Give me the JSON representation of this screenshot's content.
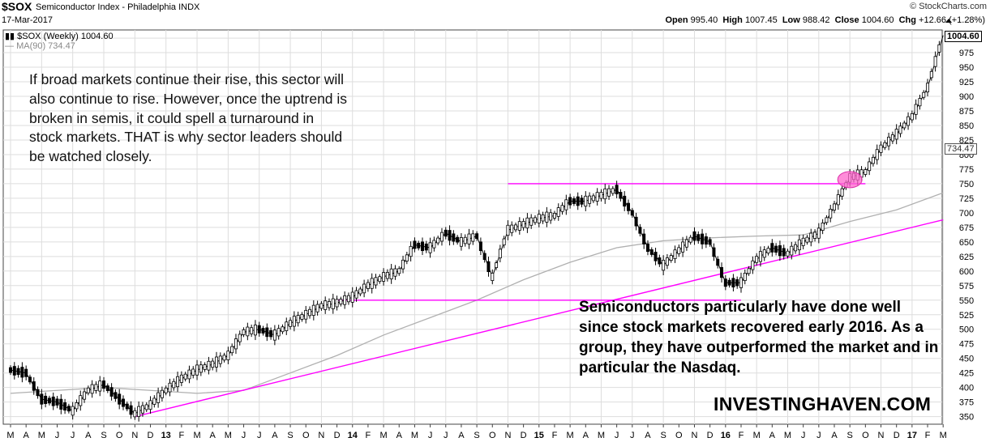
{
  "header": {
    "symbol": "$SOX",
    "name": "Semiconductor Index - Philadelphia INDX",
    "date": "17-Mar-2017",
    "source": "© StockCharts.com",
    "open_label": "Open",
    "open": "995.40",
    "high_label": "High",
    "high": "1007.45",
    "low_label": "Low",
    "low": "988.42",
    "close_label": "Close",
    "close": "1004.60",
    "chg_label": "Chg",
    "chg": "+12.66 (+1.28%)"
  },
  "legend": {
    "main": "$SOX (Weekly) 1004.60",
    "ma": "MA(90) 734.47"
  },
  "price_tags": {
    "last": "1004.60",
    "ma": "734.47"
  },
  "annotations": {
    "note1": "If broad markets continue their rise, this sector will also continue to rise. However, once the uptrend is broken in semis, it could spell a turnaround in stock markets. THAT is why sector leaders should be watched closely.",
    "note2": "Semiconductors particularly have done well since stock markets recovered early 2016. As a group, they have outperformed the market and in particular the Nasdaq.",
    "brand": "INVESTINGHAVEN.COM"
  },
  "colors": {
    "price": "#000000",
    "ma": "#b0b0b0",
    "trend": "#ff00ff",
    "highlight": "#ff66cc",
    "grid": "#dddddd"
  },
  "chart_data": {
    "type": "line",
    "series_style": "weekly candlestick",
    "ylim": [
      337,
      1014
    ],
    "y_ticks": [
      350,
      375,
      400,
      425,
      450,
      475,
      500,
      525,
      550,
      575,
      600,
      625,
      650,
      675,
      700,
      725,
      750,
      775,
      800,
      825,
      850,
      875,
      900,
      925,
      950,
      975,
      1000
    ],
    "x_labels": [
      "M",
      "A",
      "M",
      "J",
      "J",
      "A",
      "S",
      "O",
      "N",
      "D",
      "13",
      "F",
      "M",
      "A",
      "M",
      "J",
      "J",
      "A",
      "S",
      "O",
      "N",
      "D",
      "14",
      "F",
      "M",
      "A",
      "M",
      "J",
      "J",
      "A",
      "S",
      "O",
      "N",
      "D",
      "15",
      "F",
      "M",
      "A",
      "M",
      "J",
      "J",
      "A",
      "S",
      "O",
      "N",
      "D",
      "16",
      "F",
      "M",
      "A",
      "M",
      "J",
      "J",
      "A",
      "S",
      "O",
      "N",
      "D",
      "17",
      "F",
      "M"
    ],
    "x_bold": [
      "13",
      "14",
      "15",
      "16",
      "17"
    ],
    "series": [
      {
        "name": "$SOX (Weekly)",
        "x": [
          "2012-03",
          "2012-04",
          "2012-05",
          "2012-06",
          "2012-07",
          "2012-08",
          "2012-09",
          "2012-10",
          "2012-11",
          "2012-12",
          "2013-01",
          "2013-02",
          "2013-03",
          "2013-04",
          "2013-05",
          "2013-06",
          "2013-07",
          "2013-08",
          "2013-09",
          "2013-10",
          "2013-11",
          "2013-12",
          "2014-01",
          "2014-02",
          "2014-03",
          "2014-04",
          "2014-05",
          "2014-06",
          "2014-07",
          "2014-08",
          "2014-09",
          "2014-10",
          "2014-11",
          "2014-12",
          "2015-01",
          "2015-02",
          "2015-03",
          "2015-04",
          "2015-05",
          "2015-06",
          "2015-07",
          "2015-08",
          "2015-09",
          "2015-10",
          "2015-11",
          "2015-12",
          "2016-01",
          "2016-02",
          "2016-03",
          "2016-04",
          "2016-05",
          "2016-06",
          "2016-07",
          "2016-08",
          "2016-09",
          "2016-10",
          "2016-11",
          "2016-12",
          "2017-01",
          "2017-02",
          "2017-03"
        ],
        "values": [
          430,
          425,
          380,
          375,
          360,
          395,
          405,
          380,
          355,
          370,
          395,
          415,
          430,
          440,
          455,
          495,
          500,
          490,
          510,
          525,
          540,
          545,
          555,
          575,
          590,
          600,
          645,
          640,
          665,
          650,
          660,
          590,
          670,
          680,
          690,
          695,
          720,
          720,
          730,
          740,
          700,
          640,
          610,
          635,
          660,
          650,
          580,
          580,
          620,
          640,
          630,
          650,
          665,
          710,
          760,
          770,
          810,
          835,
          865,
          915,
          1004.6
        ]
      },
      {
        "name": "MA(90)",
        "x": [
          "2012-03",
          "2012-06",
          "2012-09",
          "2012-12",
          "2013-03",
          "2013-06",
          "2013-09",
          "2013-12",
          "2014-03",
          "2014-06",
          "2014-09",
          "2014-12",
          "2015-03",
          "2015-06",
          "2015-09",
          "2015-12",
          "2016-03",
          "2016-06",
          "2016-09",
          "2016-12",
          "2017-03"
        ],
        "values": [
          390,
          395,
          400,
          395,
          390,
          395,
          425,
          455,
          490,
          520,
          550,
          585,
          615,
          640,
          652,
          657,
          660,
          662,
          685,
          705,
          734.47
        ]
      }
    ],
    "trendlines": [
      {
        "x": [
          "2012-11",
          "2017-03"
        ],
        "values": [
          350,
          688
        ]
      },
      {
        "x": [
          "2013-12",
          "2016-02"
        ],
        "values": [
          550,
          550
        ]
      },
      {
        "x": [
          "2014-11",
          "2016-10"
        ],
        "values": [
          750,
          750
        ]
      }
    ],
    "highlight": {
      "x": "2016-09",
      "value": 757
    }
  }
}
